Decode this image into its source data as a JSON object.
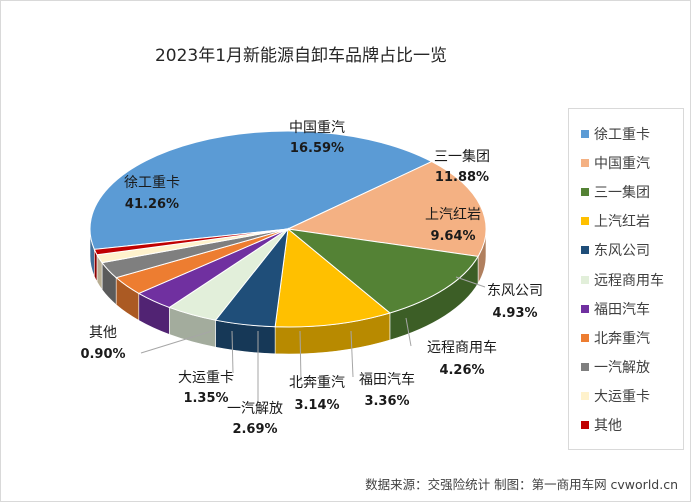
{
  "chart_data": {
    "type": "pie",
    "title": "2023年1月新能源自卸车品牌占比一览",
    "slices": [
      {
        "label": "徐工重卡",
        "value": 41.26,
        "value_label": "41.26%",
        "color": "#5b9bd5"
      },
      {
        "label": "中国重汽",
        "value": 16.59,
        "value_label": "16.59%",
        "color": "#f4b183"
      },
      {
        "label": "三一集团",
        "value": 11.88,
        "value_label": "11.88%",
        "color": "#548235"
      },
      {
        "label": "上汽红岩",
        "value": 9.64,
        "value_label": "9.64%",
        "color": "#ffc000"
      },
      {
        "label": "东风公司",
        "value": 4.93,
        "value_label": "4.93%",
        "color": "#1f4e79"
      },
      {
        "label": "远程商用车",
        "value": 4.26,
        "value_label": "4.26%",
        "color": "#e2efda"
      },
      {
        "label": "福田汽车",
        "value": 3.36,
        "value_label": "3.36%",
        "color": "#7030a0"
      },
      {
        "label": "北奔重汽",
        "value": 3.14,
        "value_label": "3.14%",
        "color": "#ed7d31"
      },
      {
        "label": "一汽解放",
        "value": 2.69,
        "value_label": "2.69%",
        "color": "#7f7f7f"
      },
      {
        "label": "大运重卡",
        "value": 1.35,
        "value_label": "1.35%",
        "color": "#fff2cc"
      },
      {
        "label": "其他",
        "value": 0.9,
        "value_label": "0.90%",
        "color": "#c00000"
      }
    ],
    "legend": {
      "position": "right"
    }
  },
  "source_note": "数据来源：交强险统计  制图：第一商用车网 cvworld.cn"
}
